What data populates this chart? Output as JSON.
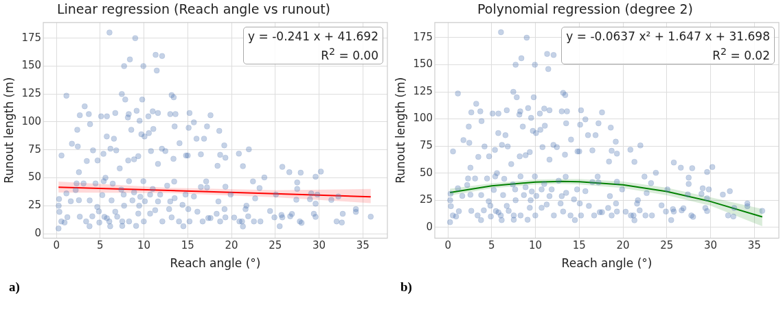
{
  "chart_data": [
    {
      "type": "scatter",
      "title": "Linear regression (Reach angle vs runout)",
      "xlabel": "Reach angle (°)",
      "ylabel": "Runout length (m)",
      "annotations": [
        "y = -0.241 x + 41.692",
        "R$^{2}$ = 0.00",
        "a)"
      ],
      "xlim": [
        -1.5,
        37.8
      ],
      "ylim": [
        -4,
        189
      ],
      "xticks": [
        0,
        5,
        10,
        15,
        20,
        25,
        30,
        35
      ],
      "yticks": [
        0,
        25,
        50,
        75,
        100,
        125,
        150,
        175
      ],
      "grid": true,
      "series": [
        {
          "type": "scatter",
          "marker": "circle",
          "color": "#4c72b0",
          "x": [
            0.24,
            0.26,
            0.34,
            0.3,
            0.56,
            0.93,
            1.25,
            1.64,
            1.14,
            2.2,
            2.3,
            2.57,
            2.67,
            3.1,
            3.78,
            3.39,
            4.1,
            3.8,
            4.47,
            4.66,
            4.9,
            4.85,
            5.24,
            5.48,
            5.4,
            5.6,
            5.77,
            6.04,
            6.14,
            6.3,
            6.43,
            6.72,
            6.94,
            7.41,
            7.52,
            7.52,
            7.73,
            7.68,
            8.29,
            8.3,
            8.68,
            8.87,
            9.1,
            9.35,
            9.45,
            9.58,
            9.93,
            10.1,
            9.98,
            10.7,
            10.7,
            11.0,
            11.28,
            11.6,
            12.1,
            11.85,
            12.65,
            12.87,
            13.0,
            13.16,
            13.45,
            13.5,
            14.0,
            14.4,
            14.75,
            15.06,
            15.2,
            14.5,
            15.7,
            16.1,
            16.5,
            16.7,
            17.1,
            17.2,
            17.34,
            6.06,
            9.0,
            11.33,
            12.07,
            8.39,
            7.73,
            9.93,
            11.46,
            1.14,
            7.47,
            7.86,
            13.16,
            13.4,
            9.8,
            3.23,
            2.67,
            3.7,
            5.1,
            5.77,
            6.72,
            8.26,
            8.16,
            9.16,
            10.5,
            11.0,
            11.6,
            13.0,
            13.6,
            15.2,
            17.6,
            9.5,
            15.7,
            3.84,
            2.38,
            8.55,
            17.2,
            13.5,
            18.6,
            10.56,
            11.07,
            9.7,
            10.06,
            15.1,
            5.75,
            6.57,
            16.0,
            16.86,
            1.77,
            2.44,
            12.05,
            12.44,
            14.06,
            4.18,
            6.17,
            6.83,
            19.17,
            21.98,
            20.84,
            0.58,
            5.37,
            9.35,
            10.8,
            14.8,
            15.0,
            16.5,
            18.7,
            19.3,
            3.47,
            4.7,
            8.2,
            8.87,
            7.23,
            2.57,
            11.6,
            13.37,
            21.3,
            18.4,
            25.8,
            26.6,
            27.9,
            30.2,
            29.6,
            27.5,
            27.5,
            23.75,
            22.45,
            23.2,
            22.7,
            25.07,
            27.4,
            32.2,
            29.8,
            29.1,
            28.96,
            29.6,
            31.4,
            34.2,
            34.2,
            32.7,
            35.9,
            32.0,
            32.6,
            29.4,
            29.6,
            27.8,
            28.0,
            26.7,
            26.9,
            25.8,
            25.7,
            25.5,
            24.9,
            24.4,
            23.3,
            22.56,
            21.9,
            21.6,
            21.7,
            21.2,
            21.3,
            20.9,
            20.3,
            19.9,
            19.3,
            18.5,
            19.2,
            19.3,
            18.7,
            18.3,
            17.6
          ],
          "values": [
            4.7,
            25,
            19.5,
            31,
            11,
            10,
            14.8,
            29,
            36,
            39,
            45,
            30,
            15.2,
            45,
            6.7,
            11,
            15.6,
            29.8,
            45,
            24,
            10,
            20,
            34.5,
            15,
            47,
            50,
            13.8,
            11,
            6.7,
            29.8,
            44.8,
            19.7,
            15.2,
            39.5,
            11,
            7,
            25,
            35,
            47,
            11,
            29.8,
            37,
            7,
            18,
            25,
            33,
            47,
            29,
            11,
            18,
            35,
            40,
            21,
            28.8,
            11,
            35,
            43,
            22,
            28.8,
            14.6,
            46.7,
            31.8,
            11,
            25.8,
            35,
            22,
            11,
            6.7,
            33.3,
            19.7,
            41.8,
            11,
            46.8,
            41.4,
            14,
            180,
            175,
            160,
            159,
            156,
            150,
            150,
            146,
            123.5,
            125,
            120,
            124,
            122,
            120,
            114,
            106,
            107,
            105,
            105,
            108,
            107,
            104,
            110,
            105,
            109.5,
            108,
            107,
            107,
            108,
            106,
            101,
            99.6,
            98,
            93,
            93,
            96,
            96,
            92,
            90,
            93.7,
            89,
            87,
            94.7,
            87,
            85,
            85,
            85,
            80.5,
            78,
            76,
            74,
            81,
            74.6,
            76,
            74.6,
            79,
            75.5,
            71.6,
            70,
            71.4,
            69.4,
            74,
            70,
            70,
            71,
            70.6,
            68,
            65,
            65.5,
            65.5,
            66.5,
            58.4,
            55,
            62.5,
            67,
            60.4,
            60.7,
            59.8,
            55,
            54.6,
            55.6,
            51,
            45.8,
            40,
            50.3,
            46.8,
            40.8,
            31.6,
            35,
            30.4,
            33.3,
            35,
            36,
            30.8,
            26.8,
            30.2,
            22,
            19.5,
            17.8,
            15.2,
            11,
            10,
            17.8,
            15,
            11,
            9.7,
            15.6,
            17.6,
            14.6,
            16.8,
            6.7,
            14.6,
            20.3,
            11,
            11,
            15.6,
            21.9,
            25,
            11,
            6.5,
            11,
            14.4,
            35,
            42,
            28.8,
            22,
            14.6,
            11,
            17.8,
            14
          ]
        },
        {
          "type": "line",
          "marker": "none",
          "color": "#ff0000",
          "x": [
            0.24,
            13,
            25,
            35.9
          ],
          "values": [
            41.6,
            38.6,
            35.7,
            33.0
          ],
          "lower": [
            36.8,
            36.3,
            32.5,
            27.4
          ],
          "upper": [
            46.6,
            41,
            39,
            40
          ]
        }
      ]
    },
    {
      "type": "scatter",
      "title": "Polynomial regression (degree 2)",
      "xlabel": "Reach angle (°)",
      "ylabel": "Runout length (m)",
      "annotations": [
        "y = -0.0637 x² + 1.647 x + 31.698",
        "R$^{2}$ = 0.02",
        "b)"
      ],
      "xlim": [
        -1.5,
        37.8
      ],
      "ylim": [
        -10,
        189
      ],
      "xticks": [
        0,
        5,
        10,
        15,
        20,
        25,
        30,
        35
      ],
      "yticks": [
        0,
        25,
        50,
        75,
        100,
        125,
        150,
        175
      ],
      "grid": true,
      "series": [
        {
          "type": "scatter",
          "marker": "circle",
          "color": "#4c72b0",
          "x": [
            0.24,
            0.26,
            0.34,
            0.3,
            0.56,
            0.93,
            1.25,
            1.64,
            1.14,
            2.2,
            2.3,
            2.57,
            2.67,
            3.1,
            3.78,
            3.39,
            4.1,
            3.8,
            4.47,
            4.66,
            4.9,
            4.85,
            5.24,
            5.48,
            5.4,
            5.6,
            5.77,
            6.04,
            6.14,
            6.3,
            6.43,
            6.72,
            6.94,
            7.41,
            7.52,
            7.52,
            7.73,
            7.68,
            8.29,
            8.3,
            8.68,
            8.87,
            9.1,
            9.35,
            9.45,
            9.58,
            9.93,
            10.1,
            9.98,
            10.7,
            10.7,
            11.0,
            11.28,
            11.6,
            12.1,
            11.85,
            12.65,
            12.87,
            13.0,
            13.16,
            13.45,
            13.5,
            14.0,
            14.4,
            14.75,
            15.06,
            15.2,
            14.5,
            15.7,
            16.1,
            16.5,
            16.7,
            17.1,
            17.2,
            17.34,
            6.06,
            9.0,
            11.33,
            12.07,
            8.39,
            7.73,
            9.93,
            11.46,
            1.14,
            7.47,
            7.86,
            13.16,
            13.4,
            9.8,
            3.23,
            2.67,
            3.7,
            5.1,
            5.77,
            6.72,
            8.26,
            8.16,
            9.16,
            10.5,
            11.0,
            11.6,
            13.0,
            13.6,
            15.2,
            17.6,
            9.5,
            15.7,
            3.84,
            2.38,
            8.55,
            17.2,
            13.5,
            18.6,
            10.56,
            11.07,
            9.7,
            10.06,
            15.1,
            5.75,
            6.57,
            16.0,
            16.86,
            1.77,
            2.44,
            12.05,
            12.44,
            14.06,
            4.18,
            6.17,
            6.83,
            19.17,
            21.98,
            20.84,
            0.58,
            5.37,
            9.35,
            10.8,
            14.8,
            15.0,
            16.5,
            18.7,
            19.3,
            3.47,
            4.7,
            8.2,
            8.87,
            7.23,
            2.57,
            11.6,
            13.37,
            21.3,
            18.4,
            25.8,
            26.6,
            27.9,
            30.2,
            29.6,
            27.5,
            27.5,
            23.75,
            22.45,
            23.2,
            22.7,
            25.07,
            27.4,
            32.2,
            29.8,
            29.1,
            28.96,
            29.6,
            31.4,
            34.2,
            34.2,
            32.7,
            35.9,
            32.0,
            32.6,
            29.4,
            29.6,
            27.8,
            28.0,
            26.7,
            26.9,
            25.8,
            25.7,
            25.5,
            24.9,
            24.4,
            23.3,
            22.56,
            21.9,
            21.6,
            21.7,
            21.2,
            21.3,
            20.9,
            20.3,
            19.9,
            19.3,
            18.5,
            19.2,
            19.3,
            18.7,
            18.3,
            17.6
          ],
          "values": [
            4.7,
            25,
            19.5,
            31,
            11,
            10,
            14.8,
            29,
            36,
            39,
            45,
            30,
            15.2,
            45,
            6.7,
            11,
            15.6,
            29.8,
            45,
            24,
            10,
            20,
            34.5,
            15,
            47,
            50,
            13.8,
            11,
            6.7,
            29.8,
            44.8,
            19.7,
            15.2,
            39.5,
            11,
            7,
            25,
            35,
            47,
            11,
            29.8,
            37,
            7,
            18,
            25,
            33,
            47,
            29,
            11,
            18,
            35,
            40,
            21,
            28.8,
            11,
            35,
            43,
            22,
            28.8,
            14.6,
            46.7,
            31.8,
            11,
            25.8,
            35,
            22,
            11,
            6.7,
            33.3,
            19.7,
            41.8,
            11,
            46.8,
            41.4,
            14,
            180,
            175,
            160,
            159,
            156,
            150,
            150,
            146,
            123.5,
            125,
            120,
            124,
            122,
            120,
            114,
            106,
            107,
            105,
            105,
            108,
            107,
            104,
            110,
            105,
            109.5,
            108,
            107,
            107,
            108,
            106,
            101,
            99.6,
            98,
            93,
            93,
            96,
            96,
            92,
            90,
            93.7,
            89,
            87,
            94.7,
            87,
            85,
            85,
            85,
            80.5,
            78,
            76,
            74,
            81,
            74.6,
            76,
            74.6,
            79,
            75.5,
            71.6,
            70,
            71.4,
            69.4,
            74,
            70,
            70,
            71,
            70.6,
            68,
            65,
            65.5,
            65.5,
            66.5,
            58.4,
            55,
            62.5,
            67,
            60.4,
            60.7,
            59.8,
            55,
            54.6,
            55.6,
            51,
            45.8,
            40,
            50.3,
            46.8,
            40.8,
            31.6,
            35,
            30.4,
            33.3,
            35,
            36,
            30.8,
            26.8,
            30.2,
            22,
            19.5,
            17.8,
            15.2,
            11,
            10,
            17.8,
            15,
            11,
            9.7,
            15.6,
            17.6,
            14.6,
            16.8,
            6.7,
            14.6,
            20.3,
            11,
            11,
            15.6,
            21.9,
            25,
            11,
            6.5,
            11,
            14.4,
            35,
            42,
            28.8,
            22,
            14.6,
            11,
            17.8,
            14
          ]
        },
        {
          "type": "line",
          "marker": "none",
          "color": "#008000",
          "x": [
            0.24,
            5,
            10,
            13,
            15,
            20,
            25,
            30,
            35.9
          ],
          "values": [
            32.1,
            38.3,
            41.8,
            42.3,
            42.1,
            39.2,
            33.1,
            23.8,
            9.7
          ],
          "lower": [
            29.4,
            36,
            39.5,
            40,
            39.6,
            36.2,
            29.6,
            20,
            1
          ],
          "upper": [
            35.5,
            40.6,
            44.1,
            44.6,
            44.6,
            42.2,
            36.6,
            27.6,
            17
          ]
        }
      ]
    }
  ]
}
